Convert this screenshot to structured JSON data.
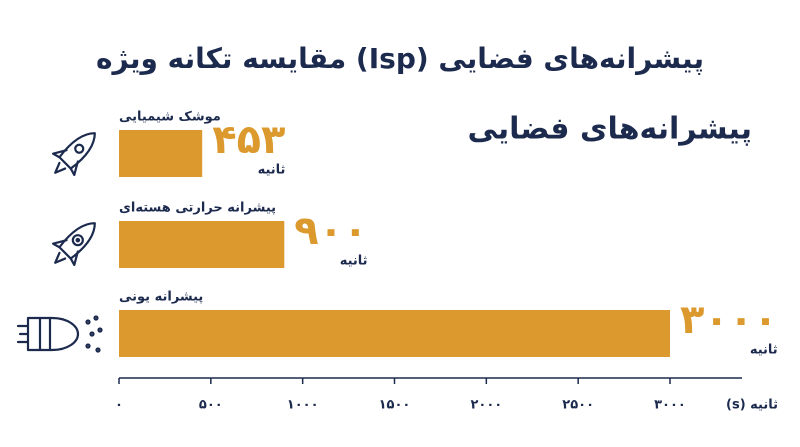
{
  "chart_data": {
    "type": "hbar",
    "title": "مقایسه تکانه ویژه (Isp) پیشرانه‌های فضایی",
    "subtitle": "پیشرانه‌های فضایی",
    "categories": [
      "موشک شیمیایی",
      "پیشرانه حرارتی هسته‌ای",
      "پیشرانه یونی"
    ],
    "values": [
      453,
      900,
      3000
    ],
    "value_labels": [
      "۴۵۳",
      "۹۰۰",
      "۳۰۰۰"
    ],
    "value_unit": "ثانیه",
    "color": "#dc9a2e",
    "xlabel": "ثانیه (s)",
    "xlim": [
      0,
      3000
    ],
    "xticks": [
      {
        "value": 0,
        "label": "۰"
      },
      {
        "value": 500,
        "label": "۵۰۰"
      },
      {
        "value": 1000,
        "label": "۱۰۰۰"
      },
      {
        "value": 1500,
        "label": "۱۵۰۰"
      },
      {
        "value": 2000,
        "label": "۲۰۰۰"
      },
      {
        "value": 2500,
        "label": "۲۵۰۰"
      },
      {
        "value": 3000,
        "label": "۳۰۰۰"
      }
    ]
  }
}
